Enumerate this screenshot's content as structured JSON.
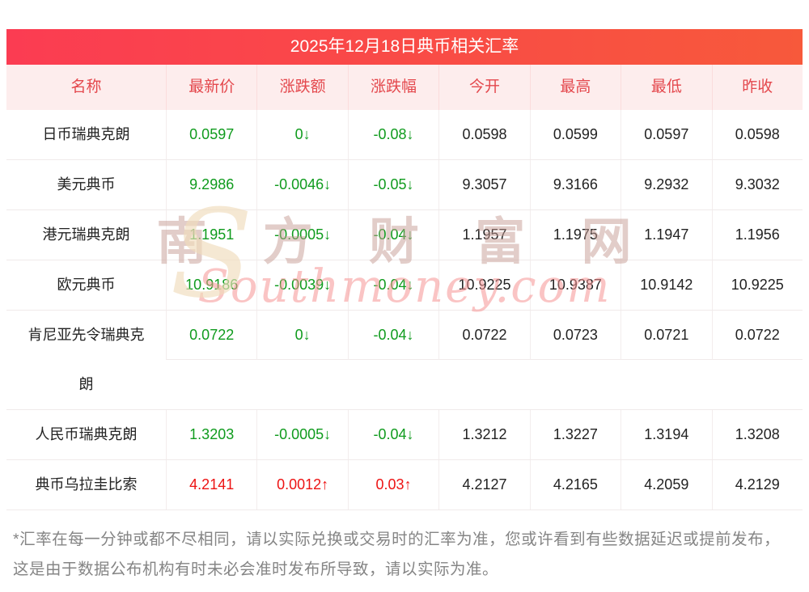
{
  "title": "2025年12月18日典币相关汇率",
  "watermark": {
    "cn": "南 方 财 富 网",
    "en": "Southmoney.com",
    "logo_glyph": "S"
  },
  "table": {
    "headers": [
      "名称",
      "最新价",
      "涨跌额",
      "涨跌幅",
      "今开",
      "最高",
      "最低",
      "昨收"
    ],
    "rows": [
      {
        "name": "日币瑞典克朗",
        "latest": "0.0597",
        "change": "0↓",
        "pct": "-0.08↓",
        "open": "0.0598",
        "high": "0.0599",
        "low": "0.0597",
        "prev": "0.0598",
        "trend": "down"
      },
      {
        "name": "美元典币",
        "latest": "9.2986",
        "change": "-0.0046↓",
        "pct": "-0.05↓",
        "open": "9.3057",
        "high": "9.3166",
        "low": "9.2932",
        "prev": "9.3032",
        "trend": "down"
      },
      {
        "name": "港元瑞典克朗",
        "latest": "1.1951",
        "change": "-0.0005↓",
        "pct": "-0.04↓",
        "open": "1.1957",
        "high": "1.1975",
        "low": "1.1947",
        "prev": "1.1956",
        "trend": "down"
      },
      {
        "name": "欧元典币",
        "latest": "10.9186",
        "change": "-0.0039↓",
        "pct": "-0.04↓",
        "open": "10.9225",
        "high": "10.9387",
        "low": "10.9142",
        "prev": "10.9225",
        "trend": "down"
      },
      {
        "name": "肯尼亚先令瑞典克朗",
        "latest": "0.0722",
        "change": "0↓",
        "pct": "-0.04↓",
        "open": "0.0722",
        "high": "0.0723",
        "low": "0.0721",
        "prev": "0.0722",
        "trend": "down"
      },
      {
        "name": "人民币瑞典克朗",
        "latest": "1.3203",
        "change": "-0.0005↓",
        "pct": "-0.04↓",
        "open": "1.3212",
        "high": "1.3227",
        "low": "1.3194",
        "prev": "1.3208",
        "trend": "down"
      },
      {
        "name": "典币乌拉圭比索",
        "latest": "4.2141",
        "change": "0.0012↑",
        "pct": "0.03↑",
        "open": "4.2127",
        "high": "4.2165",
        "low": "4.2059",
        "prev": "4.2129",
        "trend": "up"
      }
    ]
  },
  "note": "*汇率在每一分钟或都不尽相同，请以实际兑换或交易时的汇率为准，您或许看到有些数据延迟或提前发布，这是由于数据公布机构有时未必会准时发布所导致，请以实际为准。",
  "colors": {
    "up": "#ed1313",
    "down": "#0f9b1d",
    "header_bg": "#fdeded",
    "header_text": "#e4484d",
    "title_gradient_start": "#fb3c52",
    "title_gradient_end": "#f7593b"
  }
}
